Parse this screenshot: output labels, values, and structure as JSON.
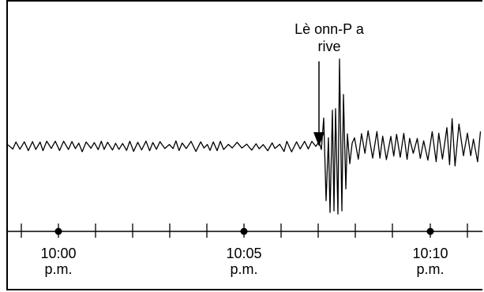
{
  "annotation": {
    "line1": "Lè onn-P a",
    "line2": "rive"
  },
  "time_labels": [
    {
      "time": "10:00",
      "ampm": "p.m."
    },
    {
      "time": "10:05",
      "ampm": "p.m."
    },
    {
      "time": "10:10",
      "ampm": "p.m."
    }
  ],
  "colors": {
    "ink": "#000000",
    "background": "#ffffff"
  }
}
